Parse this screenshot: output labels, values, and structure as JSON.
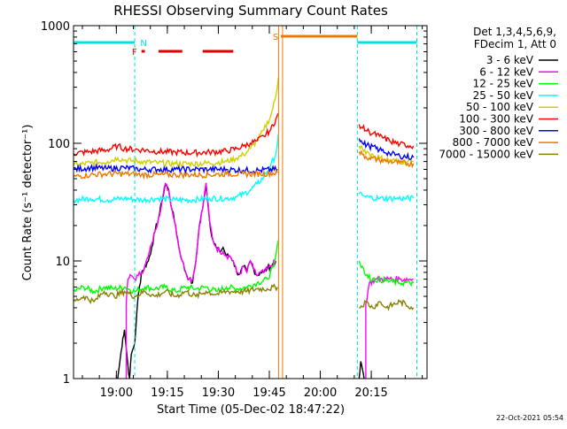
{
  "chart_data": {
    "type": "line",
    "title": "RHESSI Observing Summary Count Rates",
    "xlabel": "Start Time (05-Dec-02 18:47:22)",
    "ylabel": "Count Rate (s⁻¹ detector⁻¹)",
    "yscale": "log",
    "ylim": [
      1,
      1000
    ],
    "x_units": "minutes since 18:47:22",
    "xlim": [
      0,
      104
    ],
    "x_ticks": [
      {
        "label": "19:00",
        "x": 12.6
      },
      {
        "label": "19:15",
        "x": 27.6
      },
      {
        "label": "19:30",
        "x": 42.6
      },
      {
        "label": "19:45",
        "x": 57.6
      },
      {
        "label": "20:00",
        "x": 72.6
      },
      {
        "label": "20:15",
        "x": 87.6
      }
    ],
    "y_ticks": [
      {
        "label": "1",
        "y": 1
      },
      {
        "label": "10",
        "y": 10
      },
      {
        "label": "100",
        "y": 100
      },
      {
        "label": "1000",
        "y": 1000
      }
    ],
    "legend_header": [
      "Det 1,3,4,5,6,9,",
      "FDecim 1, Att 0"
    ],
    "legend_position": "top-right",
    "footer_date": "22-Oct-2021 05:54",
    "flags": {
      "night": {
        "label": "N",
        "color": "#00e0e0",
        "intervals": [
          [
            0,
            18
          ],
          [
            83.5,
            101
          ]
        ]
      },
      "saa": {
        "label": "S",
        "color": "#f07800",
        "intervals": [
          [
            61,
            83.5
          ]
        ]
      },
      "flare": {
        "label": "F",
        "color": "#e00000",
        "intervals": [
          [
            20,
            21
          ],
          [
            25,
            32
          ],
          [
            38,
            47
          ]
        ]
      }
    },
    "vlines": [
      {
        "x": 18,
        "color": "#00e0e0"
      },
      {
        "x": 60.3,
        "color": "#f07800"
      },
      {
        "x": 61.5,
        "color": "#f07800"
      },
      {
        "x": 83.5,
        "color": "#00e0e0"
      },
      {
        "x": 101,
        "color": "#00e0e0"
      }
    ],
    "series": [
      {
        "name": "3 - 6 keV",
        "color": "#000000",
        "points": [
          [
            13,
            1
          ],
          [
            13.5,
            1.3
          ],
          [
            14,
            1.7
          ],
          [
            14.5,
            2.2
          ],
          [
            15,
            2.6
          ],
          [
            16,
            1.3
          ],
          [
            16.5,
            1
          ],
          [
            17,
            1.6
          ],
          [
            18,
            2
          ],
          [
            19,
            5
          ],
          [
            20,
            8
          ],
          [
            22,
            10
          ],
          [
            23,
            13
          ],
          [
            24,
            18
          ],
          [
            25,
            23
          ],
          [
            26,
            32
          ],
          [
            27,
            45
          ],
          [
            28,
            40
          ],
          [
            29,
            27
          ],
          [
            30,
            20
          ],
          [
            31,
            13
          ],
          [
            32,
            10
          ],
          [
            33,
            8
          ],
          [
            34,
            7
          ],
          [
            35,
            6.5
          ],
          [
            36,
            10
          ],
          [
            37,
            20
          ],
          [
            38,
            28
          ],
          [
            39,
            46
          ],
          [
            40,
            22
          ],
          [
            41,
            15
          ],
          [
            42,
            13
          ],
          [
            43,
            12
          ],
          [
            44,
            13
          ],
          [
            45,
            11
          ],
          [
            46,
            11
          ],
          [
            47,
            10
          ],
          [
            48,
            8
          ],
          [
            49,
            7.8
          ],
          [
            50,
            9
          ],
          [
            51,
            8
          ],
          [
            52,
            10
          ],
          [
            53,
            8.5
          ],
          [
            54,
            7.5
          ],
          [
            55,
            8
          ],
          [
            56,
            8
          ],
          [
            57,
            8.7
          ],
          [
            58,
            9
          ],
          [
            59.5,
            10
          ]
        ]
      },
      {
        "name": "6 - 12 keV",
        "color": "#ff00ff",
        "points": [
          [
            15.5,
            1
          ],
          [
            15.5,
            4.3
          ],
          [
            16,
            7
          ],
          [
            17,
            7.5
          ],
          [
            18,
            7
          ],
          [
            19,
            7.5
          ],
          [
            20,
            8
          ],
          [
            21,
            9
          ],
          [
            22,
            11
          ],
          [
            23,
            14
          ],
          [
            24,
            18
          ],
          [
            25,
            23
          ],
          [
            26,
            32
          ],
          [
            27,
            45
          ],
          [
            28,
            40
          ],
          [
            29,
            27
          ],
          [
            30,
            20
          ],
          [
            31,
            13
          ],
          [
            32,
            10
          ],
          [
            33,
            8
          ],
          [
            34,
            7
          ],
          [
            35,
            7
          ],
          [
            36,
            10
          ],
          [
            37,
            20
          ],
          [
            38,
            28
          ],
          [
            39,
            46
          ],
          [
            40,
            22
          ],
          [
            41,
            15
          ],
          [
            42,
            13
          ],
          [
            43,
            12
          ],
          [
            44,
            12
          ],
          [
            45,
            11
          ],
          [
            46,
            11
          ],
          [
            47,
            10
          ],
          [
            48,
            8
          ],
          [
            49,
            7.8
          ],
          [
            50,
            9
          ],
          [
            51,
            8
          ],
          [
            52,
            10
          ],
          [
            53,
            8.5
          ],
          [
            54,
            7.5
          ],
          [
            55,
            8
          ],
          [
            56,
            8
          ],
          [
            57,
            8.5
          ],
          [
            58,
            9
          ],
          [
            59.5,
            10
          ]
        ]
      },
      {
        "name": "12 - 25 keV",
        "color": "#00ff00",
        "points": [
          [
            0,
            5.5
          ],
          [
            3,
            6
          ],
          [
            6,
            5.5
          ],
          [
            9,
            6
          ],
          [
            12,
            5.8
          ],
          [
            15,
            6
          ],
          [
            18,
            5.5
          ],
          [
            21,
            6
          ],
          [
            24,
            5.8
          ],
          [
            27,
            6
          ],
          [
            30,
            5.5
          ],
          [
            33,
            6
          ],
          [
            36,
            5.8
          ],
          [
            39,
            6
          ],
          [
            42,
            5.5
          ],
          [
            45,
            6
          ],
          [
            48,
            5.8
          ],
          [
            51,
            6
          ],
          [
            54,
            6.5
          ],
          [
            57,
            7
          ],
          [
            59,
            9
          ],
          [
            60.3,
            15
          ]
        ]
      },
      {
        "name": "25 - 50 keV",
        "color": "#00ffff",
        "points": [
          [
            0,
            33
          ],
          [
            5,
            34
          ],
          [
            10,
            33
          ],
          [
            15,
            34
          ],
          [
            20,
            33
          ],
          [
            25,
            34
          ],
          [
            30,
            33
          ],
          [
            35,
            33
          ],
          [
            40,
            34
          ],
          [
            45,
            34
          ],
          [
            48,
            35
          ],
          [
            50,
            37
          ],
          [
            52,
            40
          ],
          [
            54,
            45
          ],
          [
            56,
            52
          ],
          [
            58,
            65
          ],
          [
            59.5,
            80
          ],
          [
            60.3,
            120
          ]
        ]
      },
      {
        "name": "50 - 100 keV",
        "color": "#d0d000",
        "points": [
          [
            0,
            65
          ],
          [
            5,
            68
          ],
          [
            10,
            70
          ],
          [
            13,
            75
          ],
          [
            15,
            72
          ],
          [
            20,
            70
          ],
          [
            25,
            68
          ],
          [
            30,
            67
          ],
          [
            35,
            67
          ],
          [
            40,
            68
          ],
          [
            45,
            70
          ],
          [
            48,
            75
          ],
          [
            50,
            80
          ],
          [
            52,
            90
          ],
          [
            54,
            105
          ],
          [
            56,
            130
          ],
          [
            58,
            170
          ],
          [
            59.5,
            250
          ],
          [
            60.3,
            360
          ]
        ]
      },
      {
        "name": "100 - 300 keV",
        "color": "#ff0000",
        "points": [
          [
            0,
            82
          ],
          [
            5,
            85
          ],
          [
            10,
            88
          ],
          [
            13,
            95
          ],
          [
            15,
            90
          ],
          [
            20,
            88
          ],
          [
            25,
            85
          ],
          [
            30,
            84
          ],
          [
            35,
            83
          ],
          [
            40,
            84
          ],
          [
            45,
            86
          ],
          [
            48,
            90
          ],
          [
            50,
            95
          ],
          [
            52,
            100
          ],
          [
            54,
            105
          ],
          [
            56,
            115
          ],
          [
            58,
            130
          ],
          [
            59.5,
            160
          ],
          [
            60.3,
            180
          ]
        ]
      },
      {
        "name": "300 - 800 keV",
        "color": "#0000ff",
        "points": [
          [
            0,
            60
          ],
          [
            5,
            62
          ],
          [
            10,
            61
          ],
          [
            15,
            62
          ],
          [
            20,
            60
          ],
          [
            25,
            60
          ],
          [
            30,
            60
          ],
          [
            35,
            60
          ],
          [
            40,
            60
          ],
          [
            45,
            60
          ],
          [
            50,
            59
          ],
          [
            55,
            59
          ],
          [
            60,
            60
          ]
        ]
      },
      {
        "name": "800 - 7000 keV",
        "color": "#f07800",
        "points": [
          [
            0,
            52
          ],
          [
            5,
            54
          ],
          [
            10,
            55
          ],
          [
            15,
            55
          ],
          [
            20,
            54
          ],
          [
            25,
            54
          ],
          [
            30,
            54
          ],
          [
            35,
            54
          ],
          [
            40,
            54
          ],
          [
            45,
            55
          ],
          [
            50,
            55
          ],
          [
            55,
            55
          ],
          [
            60,
            56
          ]
        ]
      },
      {
        "name": "7000 - 15000 keV",
        "color": "#888000",
        "points": [
          [
            0,
            4.5
          ],
          [
            3,
            5
          ],
          [
            6,
            4.5
          ],
          [
            9,
            5.5
          ],
          [
            12,
            5
          ],
          [
            15,
            5.5
          ],
          [
            18,
            5
          ],
          [
            21,
            5.5
          ],
          [
            24,
            5
          ],
          [
            27,
            5.5
          ],
          [
            30,
            5
          ],
          [
            33,
            5.5
          ],
          [
            36,
            5
          ],
          [
            39,
            5.5
          ],
          [
            42,
            5.2
          ],
          [
            45,
            5.5
          ],
          [
            48,
            5.5
          ],
          [
            51,
            5.5
          ],
          [
            54,
            5.8
          ],
          [
            57,
            5.8
          ],
          [
            60,
            6
          ]
        ]
      }
    ],
    "series_after": [
      {
        "name": "3 - 6 keV",
        "color": "#000000",
        "points": [
          [
            84,
            1
          ],
          [
            84.5,
            1.4
          ],
          [
            85,
            1.2
          ],
          [
            85.5,
            1
          ]
        ]
      },
      {
        "name": "6 - 12 keV",
        "color": "#ff00ff",
        "points": [
          [
            86,
            1
          ],
          [
            86,
            4.3
          ],
          [
            87,
            6.5
          ],
          [
            89,
            7
          ],
          [
            92,
            7
          ],
          [
            96,
            7
          ],
          [
            100,
            7
          ]
        ]
      },
      {
        "name": "12 - 25 keV",
        "color": "#00ff00",
        "points": [
          [
            84,
            10
          ],
          [
            85,
            9
          ],
          [
            86,
            7.5
          ],
          [
            88,
            7
          ],
          [
            92,
            6.8
          ],
          [
            96,
            6.5
          ],
          [
            100,
            6.5
          ]
        ]
      },
      {
        "name": "25 - 50 keV",
        "color": "#00ffff",
        "points": [
          [
            84,
            37
          ],
          [
            86,
            35
          ],
          [
            90,
            34
          ],
          [
            95,
            34
          ],
          [
            100,
            34
          ]
        ]
      },
      {
        "name": "50 - 100 keV",
        "color": "#d0d000",
        "points": [
          [
            84,
            95
          ],
          [
            85,
            90
          ],
          [
            87,
            82
          ],
          [
            90,
            75
          ],
          [
            93,
            72
          ],
          [
            96,
            70
          ],
          [
            100,
            70
          ]
        ]
      },
      {
        "name": "100 - 300 keV",
        "color": "#ff0000",
        "points": [
          [
            84,
            145
          ],
          [
            85,
            135
          ],
          [
            87,
            125
          ],
          [
            90,
            115
          ],
          [
            93,
            105
          ],
          [
            96,
            98
          ],
          [
            100,
            95
          ]
        ]
      },
      {
        "name": "300 - 800 keV",
        "color": "#0000ff",
        "points": [
          [
            84,
            110
          ],
          [
            85,
            100
          ],
          [
            87,
            95
          ],
          [
            90,
            88
          ],
          [
            93,
            82
          ],
          [
            96,
            78
          ],
          [
            100,
            76
          ]
        ]
      },
      {
        "name": "800 - 7000 keV",
        "color": "#f07800",
        "points": [
          [
            84,
            85
          ],
          [
            85,
            80
          ],
          [
            87,
            75
          ],
          [
            90,
            72
          ],
          [
            93,
            70
          ],
          [
            96,
            68
          ],
          [
            100,
            67
          ]
        ]
      },
      {
        "name": "7000 - 15000 keV",
        "color": "#888000",
        "points": [
          [
            84,
            4
          ],
          [
            86,
            4.5
          ],
          [
            88,
            4
          ],
          [
            90,
            4.5
          ],
          [
            92,
            4
          ],
          [
            96,
            4.5
          ],
          [
            100,
            4
          ]
        ]
      }
    ]
  }
}
